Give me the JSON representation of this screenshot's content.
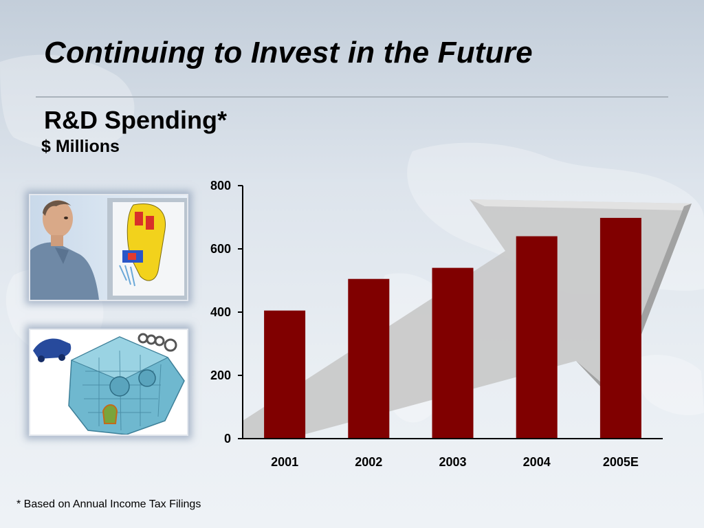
{
  "slide": {
    "title": "Continuing to Invest in the Future",
    "subtitle": "R&D Spending*",
    "units": "$ Millions",
    "footnote": "* Based on Annual Income Tax Filings"
  },
  "images": [
    {
      "name": "engineer-cad-photo",
      "icon": "engineer-at-cad-screen"
    },
    {
      "name": "engine-model-image",
      "icon": "engine-block-3d-model"
    }
  ],
  "colors": {
    "bar": "#800000",
    "arrow": "#c8c8c8",
    "background": "#dde4ec"
  },
  "chart_data": {
    "type": "bar",
    "title": "R&D Spending*",
    "ylabel": "$ Millions",
    "categories": [
      "2001",
      "2002",
      "2003",
      "2004",
      "2005E"
    ],
    "values": [
      405,
      505,
      540,
      640,
      698
    ],
    "ylim": [
      0,
      800
    ],
    "yticks": [
      0,
      200,
      400,
      600,
      800
    ],
    "grid": false,
    "legend": "none",
    "decoration": "upward-trend-arrow"
  }
}
